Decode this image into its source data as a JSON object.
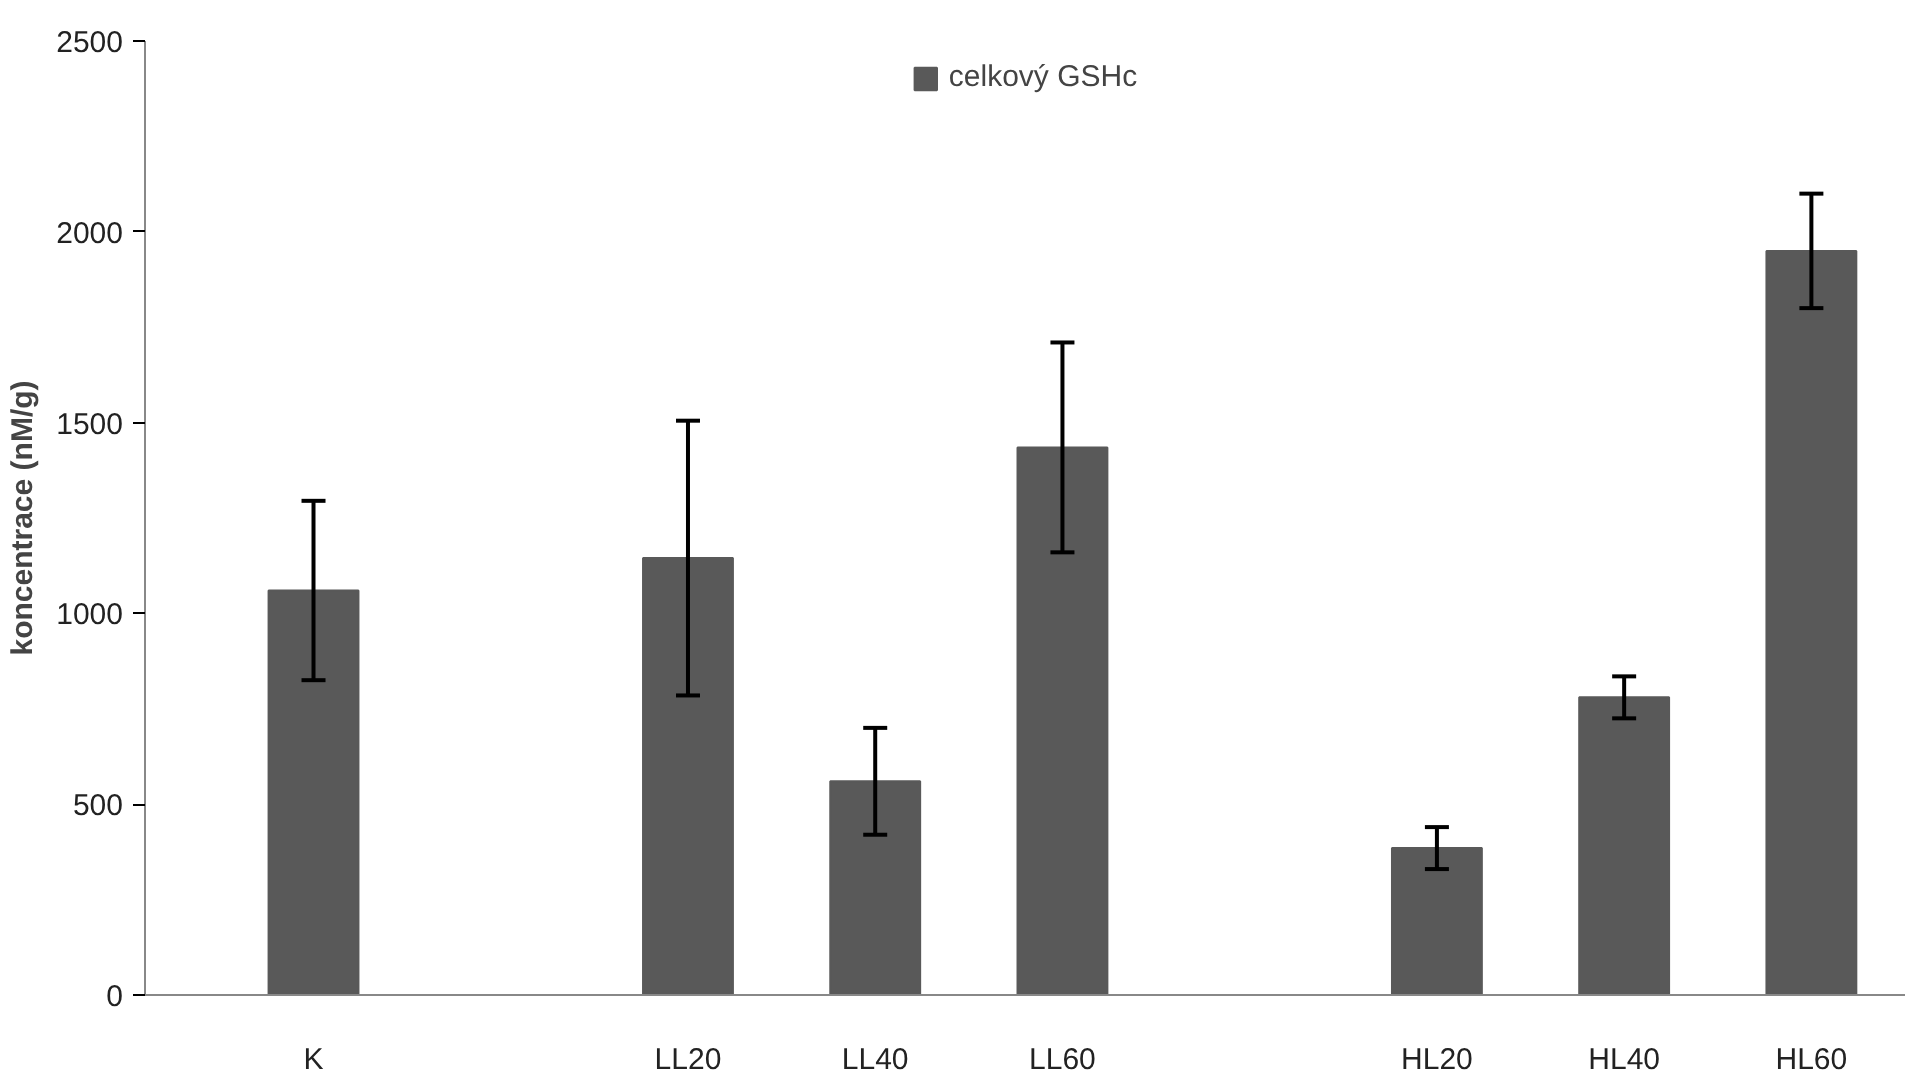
{
  "chart_data": {
    "type": "bar",
    "ylabel": "koncentrace (nM/g)",
    "categories": [
      "K",
      null,
      "LL20",
      "LL40",
      "LL60",
      null,
      "HL20",
      "HL40",
      "HL60"
    ],
    "series": [
      {
        "name": "celkový GSHc",
        "color": "#595959",
        "values": [
          1060,
          null,
          1145,
          560,
          1435,
          null,
          385,
          780,
          1950
        ],
        "errors": [
          235,
          null,
          360,
          140,
          275,
          null,
          55,
          55,
          150
        ]
      }
    ],
    "ylim": [
      0,
      2500
    ],
    "yticks": [
      0,
      500,
      1000,
      1500,
      2000,
      2500
    ],
    "grid": false,
    "legend": "top"
  }
}
